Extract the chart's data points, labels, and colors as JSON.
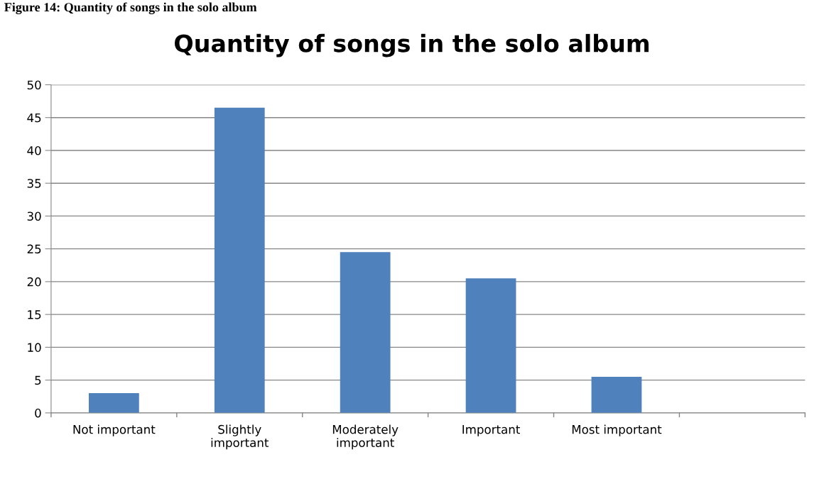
{
  "chart_data": {
    "type": "bar",
    "title": "Quantity of songs in the solo album",
    "annotations": [
      "Figure 14: Quantity of songs in the solo album"
    ],
    "categories": [
      "Not important",
      "Slightly\nimportant",
      "Moderately\nimportant",
      "Important",
      "Most important",
      null
    ],
    "values": [
      3,
      46.5,
      24.5,
      20.5,
      5.5,
      null
    ],
    "color": "#4f81bd",
    "ylim": [
      0,
      50
    ],
    "yticks": [
      0,
      5,
      10,
      15,
      20,
      25,
      30,
      35,
      40,
      45,
      50
    ],
    "grid": "y",
    "legend": false
  }
}
